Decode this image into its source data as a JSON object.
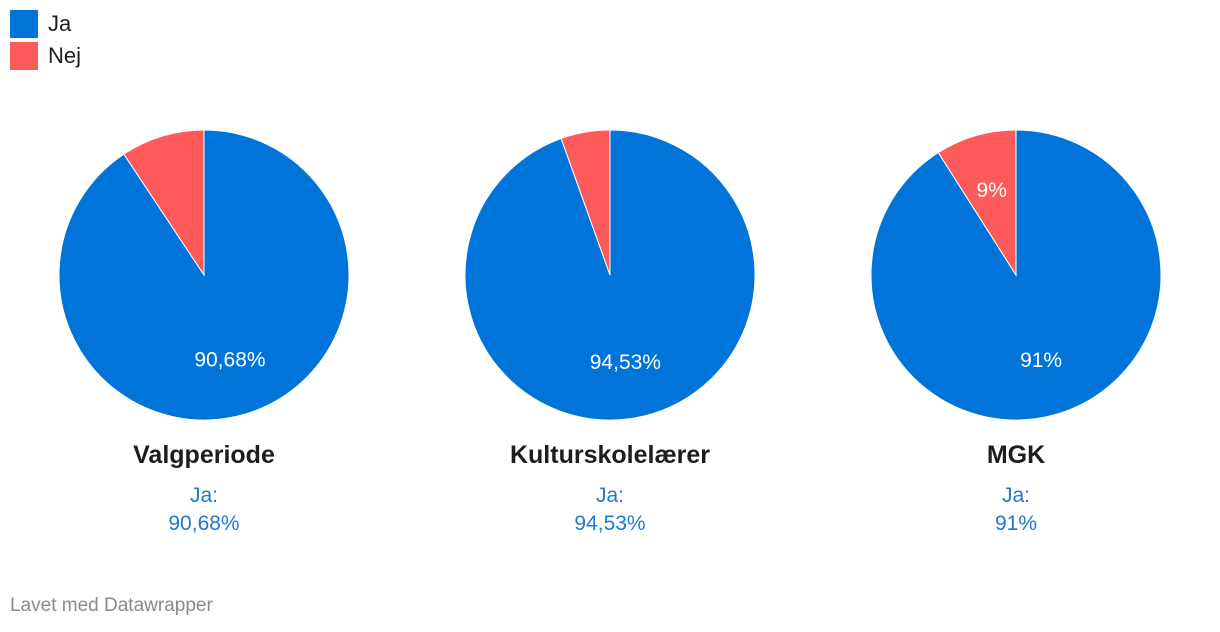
{
  "legend": [
    {
      "label": "Ja",
      "color": "#0074d9"
    },
    {
      "label": "Nej",
      "color": "#ff5a5a"
    }
  ],
  "chart_data": [
    {
      "type": "pie",
      "title": "Valgperiode",
      "sub_label": "Ja:",
      "sub_value": "90,68%",
      "slices": [
        {
          "name": "Ja",
          "value": 90.68,
          "label": "90,68%",
          "color": "#0074d9"
        },
        {
          "name": "Nej",
          "value": 9.32,
          "label": "",
          "color": "#ff5a5a"
        }
      ]
    },
    {
      "type": "pie",
      "title": "Kulturskolelærer",
      "sub_label": "Ja:",
      "sub_value": "94,53%",
      "slices": [
        {
          "name": "Ja",
          "value": 94.53,
          "label": "94,53%",
          "color": "#0074d9"
        },
        {
          "name": "Nej",
          "value": 5.47,
          "label": "",
          "color": "#ff5a5a"
        }
      ]
    },
    {
      "type": "pie",
      "title": "MGK",
      "sub_label": "Ja:",
      "sub_value": "91%",
      "slices": [
        {
          "name": "Ja",
          "value": 91,
          "label": "91%",
          "color": "#0074d9"
        },
        {
          "name": "Nej",
          "value": 9,
          "label": "9%",
          "color": "#ff5a5a"
        }
      ]
    }
  ],
  "footer": "Lavet med Datawrapper"
}
